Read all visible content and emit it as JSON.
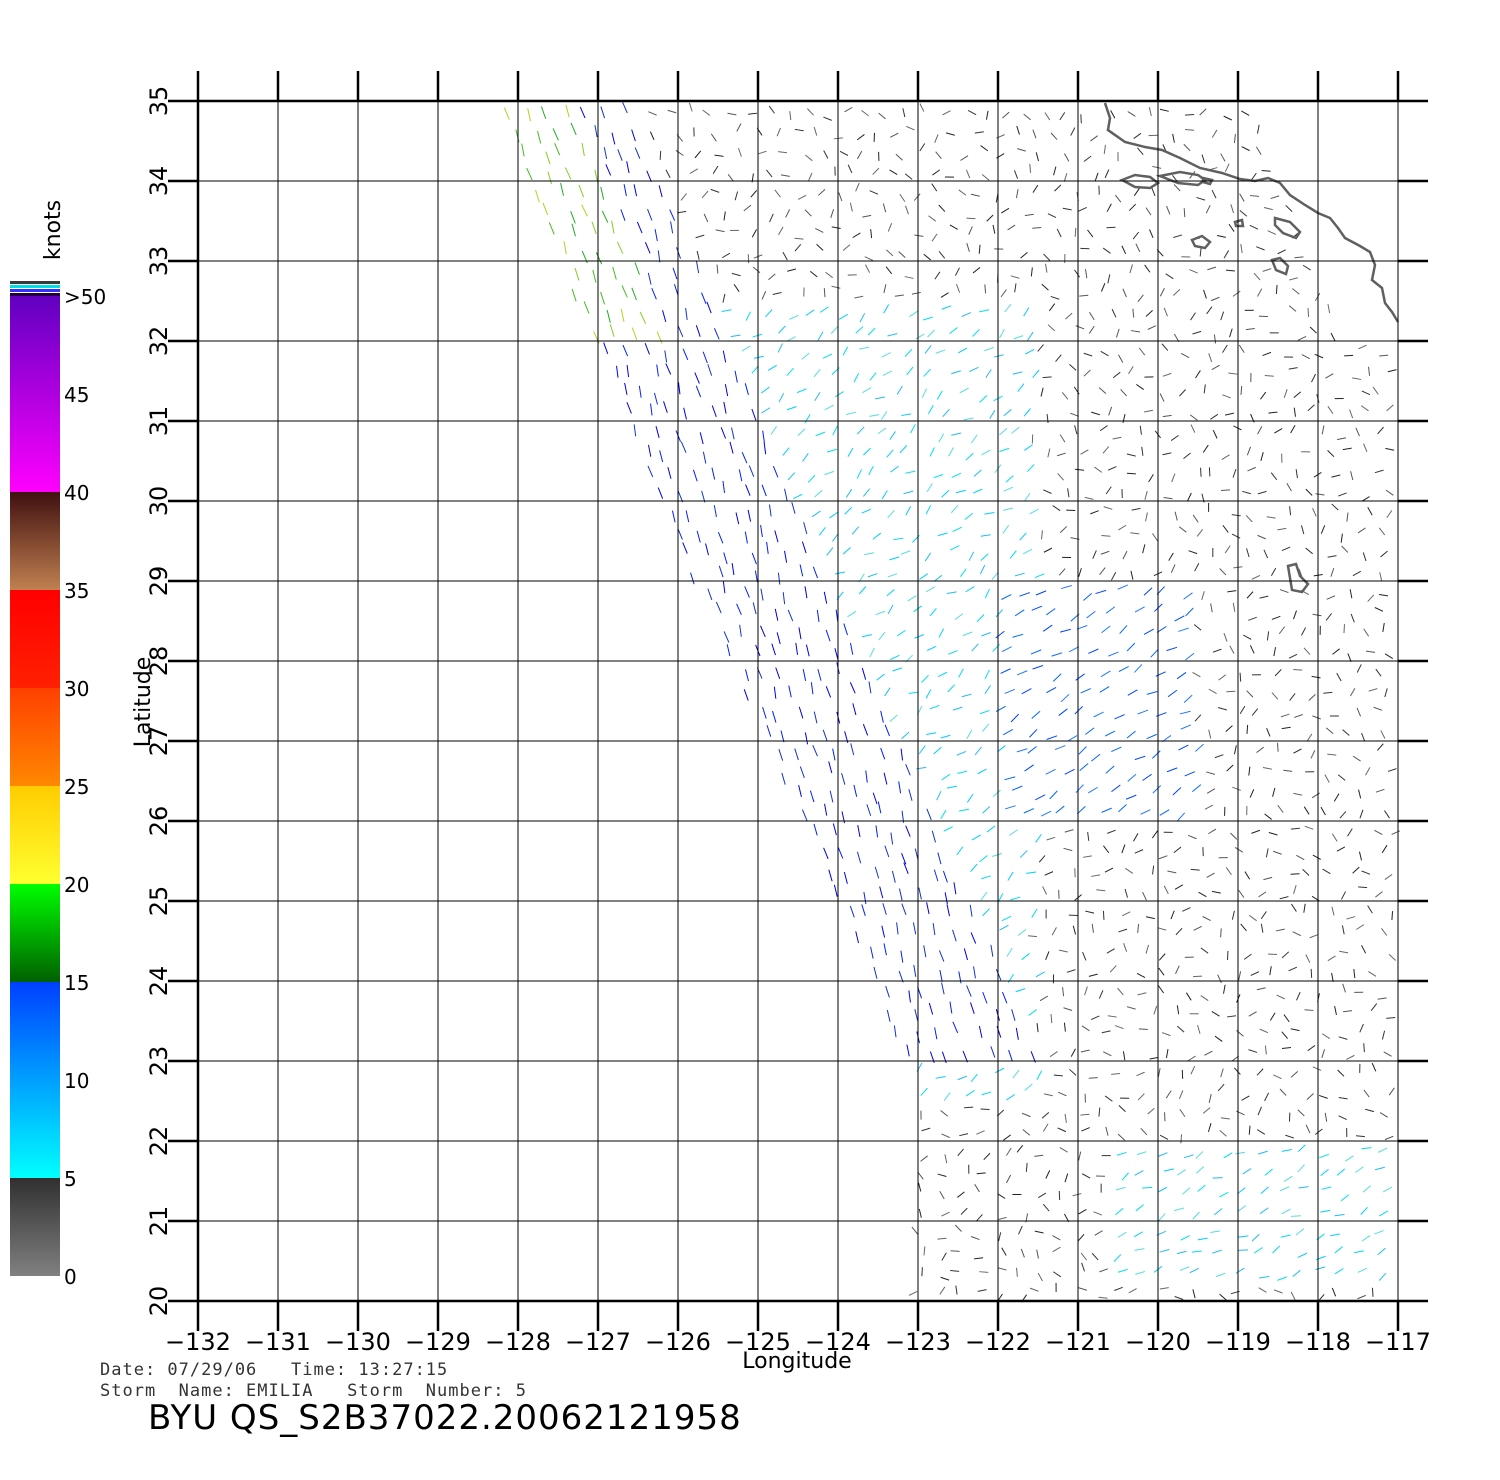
{
  "map": {
    "lon_range": [
      -132,
      -117
    ],
    "lat_range": [
      20,
      35
    ],
    "lon_ticks": [
      "−132",
      "−131",
      "−130",
      "−129",
      "−128",
      "−127",
      "−126",
      "−125",
      "−124",
      "−123",
      "−122",
      "−121",
      "−120",
      "−119",
      "−118",
      "−117"
    ],
    "lat_ticks": [
      "20",
      "21",
      "22",
      "23",
      "24",
      "25",
      "26",
      "27",
      "28",
      "29",
      "30",
      "31",
      "32",
      "33",
      "34",
      "35"
    ],
    "xlabel": "Longitude",
    "ylabel": "Latitude",
    "grid": true,
    "field": "wind vectors",
    "swath_west_edge": [
      [
        -128.2,
        35
      ],
      [
        -126.9,
        31.8
      ],
      [
        -125.5,
        28.5
      ],
      [
        -124.6,
        26.5
      ],
      [
        -123.7,
        24.5
      ],
      [
        -122.9,
        22.6
      ],
      [
        -123,
        20
      ]
    ],
    "speed_regions_knots": [
      {
        "where": "northwest swath edge",
        "speed": 15
      },
      {
        "where": "western swath band",
        "speed": 12
      },
      {
        "where": "central band 26-29N",
        "speed": 10
      },
      {
        "where": "open ocean",
        "speed": 6
      },
      {
        "where": "near coast and south",
        "speed": 3
      }
    ]
  },
  "colorbar": {
    "unit": "knots",
    "labels": [
      "0",
      "5",
      "10",
      "15",
      "20",
      "25",
      "30",
      "35",
      "40",
      "45",
      ">50"
    ],
    "bands": [
      {
        "from": 0,
        "to": 5,
        "colors": [
          "#808080",
          "#303030"
        ]
      },
      {
        "from": 5,
        "to": 15,
        "colors": [
          "#00ffff",
          "#0040ff"
        ]
      },
      {
        "from": 15,
        "to": 20,
        "colors": [
          "#006000",
          "#00ff00"
        ]
      },
      {
        "from": 20,
        "to": 25,
        "colors": [
          "#ffff30",
          "#ffcc00"
        ]
      },
      {
        "from": 25,
        "to": 30,
        "colors": [
          "#ff8800",
          "#ff4000"
        ]
      },
      {
        "from": 30,
        "to": 35,
        "colors": [
          "#ff2000",
          "#ff0000"
        ]
      },
      {
        "from": 35,
        "to": 40,
        "colors": [
          "#c08050",
          "#401010"
        ]
      },
      {
        "from": 40,
        "to": 50,
        "colors": [
          "#ff00ff",
          "#6000c0"
        ]
      }
    ]
  },
  "meta": {
    "line1": "Date: 07/29/06   Time: 13:27:15",
    "line2": "Storm  Name: EMILIA   Storm  Number: 5",
    "title": "BYU  QS_S2B37022.20062121958"
  }
}
